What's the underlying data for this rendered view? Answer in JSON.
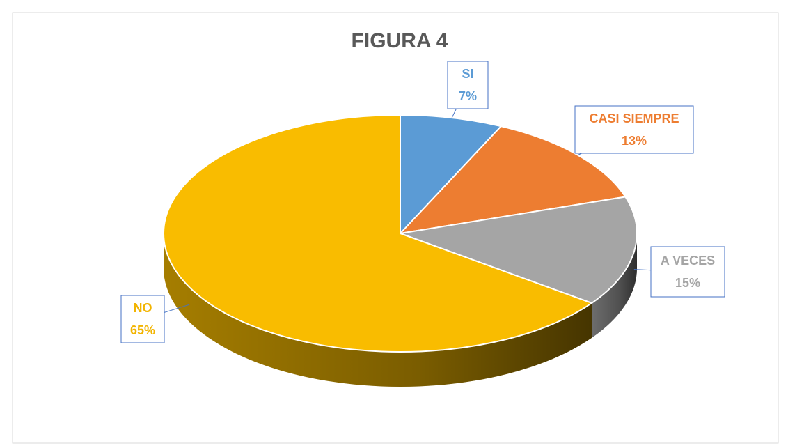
{
  "chart_data": {
    "type": "pie",
    "title": "FIGURA 4",
    "categories": [
      "SI",
      "CASI SIEMPRE",
      "A VECES",
      "NO"
    ],
    "values": [
      7,
      13,
      15,
      65
    ],
    "value_labels": [
      "7%",
      "13%",
      "15%",
      "65%"
    ],
    "colors": [
      "#5b9bd5",
      "#ed7d31",
      "#a5a5a5",
      "#f9bc00"
    ]
  }
}
